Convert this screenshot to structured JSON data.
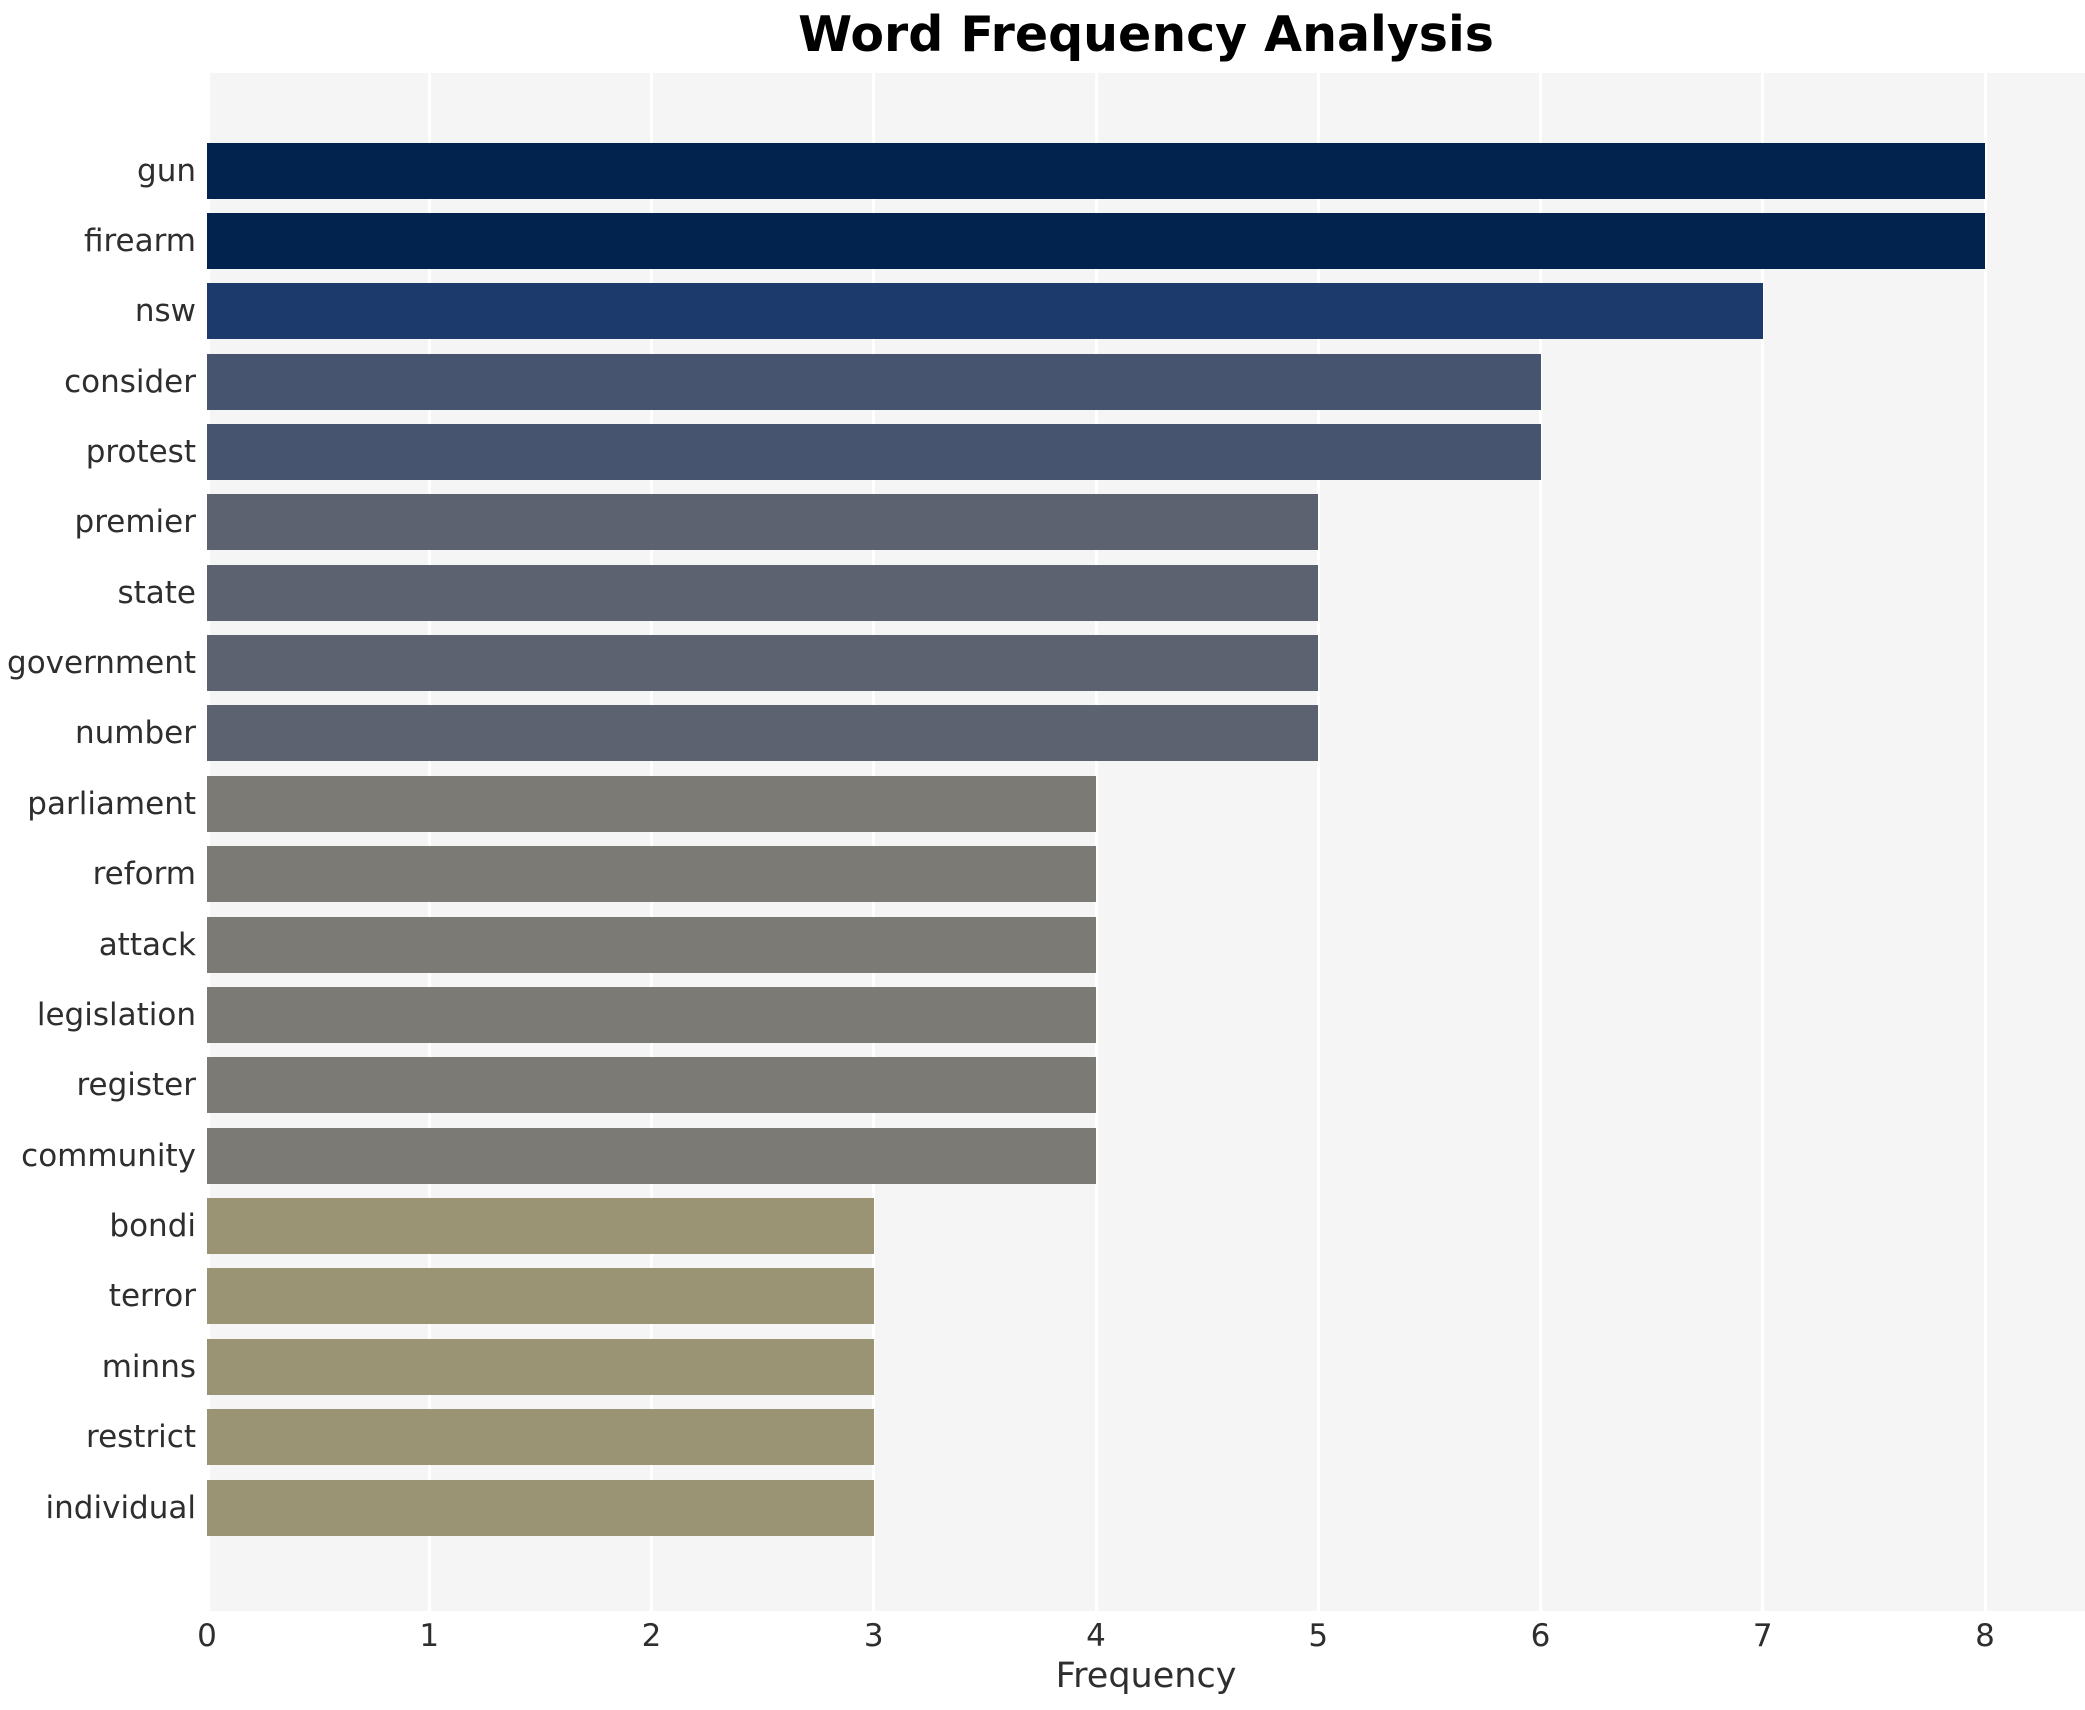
{
  "chart_data": {
    "type": "bar",
    "orientation": "horizontal",
    "title": "Word Frequency Analysis",
    "xlabel": "Frequency",
    "ylabel": "",
    "categories": [
      "gun",
      "firearm",
      "nsw",
      "consider",
      "protest",
      "premier",
      "state",
      "government",
      "number",
      "parliament",
      "reform",
      "attack",
      "legislation",
      "register",
      "community",
      "bondi",
      "terror",
      "minns",
      "restrict",
      "individual"
    ],
    "values": [
      8,
      8,
      7,
      6,
      6,
      5,
      5,
      5,
      5,
      4,
      4,
      4,
      4,
      4,
      4,
      3,
      3,
      3,
      3,
      3
    ],
    "xticks": [
      "0",
      "1",
      "2",
      "3",
      "4",
      "5",
      "6",
      "7",
      "8"
    ],
    "xlim": [
      0,
      8.45
    ],
    "grid": true,
    "legend_position": "none",
    "styles": {
      "plot_background": "#f5f5f6",
      "gridline_color": "#ffffff",
      "title_color": "#000000",
      "tick_label_color": "#2e2e2e",
      "category_label_color": "#2e2e2e",
      "axis_label_color": "#2e2e2e",
      "value_colors": {
        "8": "#02234e",
        "7": "#1d3a6d",
        "6": "#475470",
        "5": "#5d6270",
        "4": "#7b7a75",
        "3": "#9a9374"
      }
    }
  }
}
